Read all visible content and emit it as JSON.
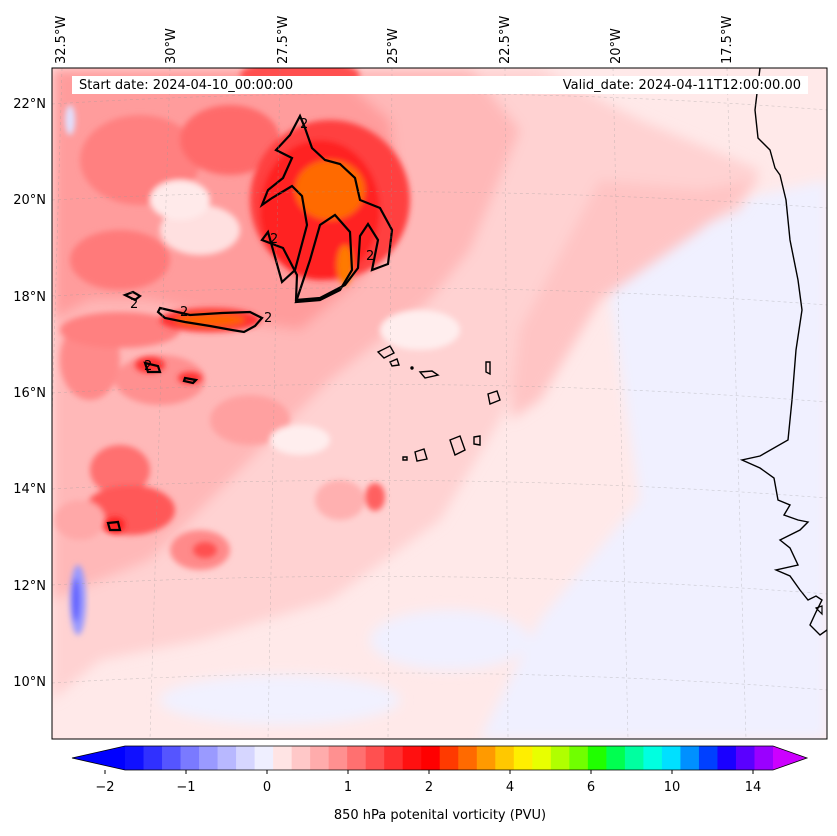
{
  "header": {
    "start_date": "Start date: 2024-04-10_00:00:00",
    "valid_date": "Valid_date: 2024-04-11T12:00:00.00"
  },
  "map": {
    "lon_labels": [
      "32.5°W",
      "30°W",
      "27.5°W",
      "25°W",
      "22.5°W",
      "20°W",
      "17.5°W"
    ],
    "lat_labels": [
      "22°N",
      "20°N",
      "18°N",
      "16°N",
      "14°N",
      "12°N",
      "10°N"
    ],
    "contour_label": "2"
  },
  "colorbar": {
    "title": "850 hPa potenital vorticity (PVU)",
    "tick_labels": [
      "−2",
      "−1",
      "0",
      "1",
      "2",
      "4",
      "6",
      "10",
      "14"
    ],
    "colors": [
      "#1010ff",
      "#3030ff",
      "#5555ff",
      "#7a7aff",
      "#9a9aff",
      "#b8b8ff",
      "#d6d6ff",
      "#efefff",
      "#ffe4e4",
      "#ffc8c8",
      "#ffacac",
      "#ff9090",
      "#ff7070",
      "#ff5050",
      "#ff3030",
      "#ff1010",
      "#ff0000",
      "#ff3a00",
      "#ff6a00",
      "#ff9a00",
      "#ffc800",
      "#ffee00",
      "#e8ff00",
      "#b0ff00",
      "#70ff00",
      "#20ff00",
      "#00ff50",
      "#00ffa0",
      "#00ffe0",
      "#00e0ff",
      "#0090ff",
      "#0040ff",
      "#1a00ff",
      "#5a00ff",
      "#9a00ff"
    ],
    "under_color": "#0000ff",
    "over_color": "#cc00ff"
  }
}
